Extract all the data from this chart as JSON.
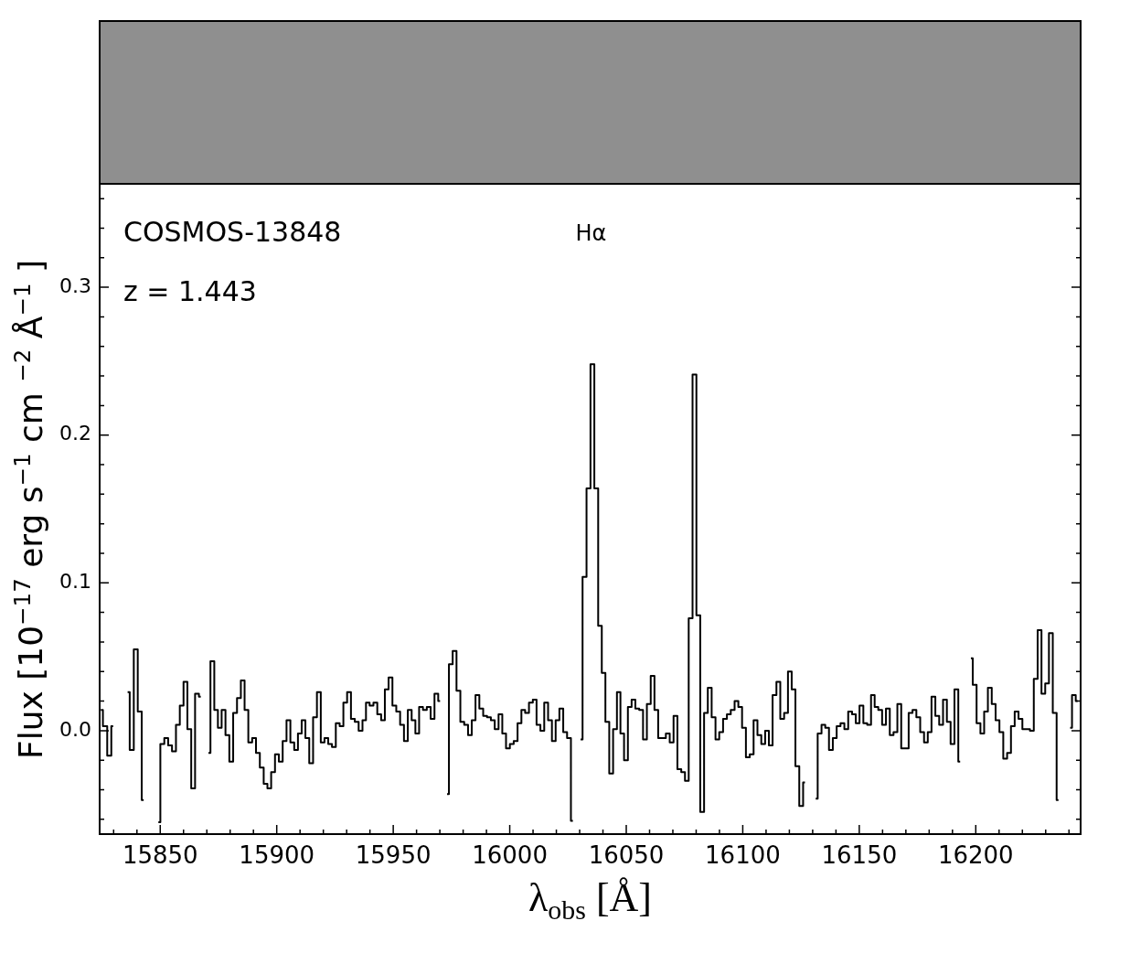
{
  "chart_data": {
    "type": "step",
    "xlabel": "λ$_{obs}$ [Å]",
    "ylabel": "Flux [10$^{−17}$ erg s$^{−1}$ cm $^{−2}$ Å$^{−1}$ ]",
    "annotations": [
      "COSMOS-13848",
      "z = 1.443",
      "Hα"
    ],
    "xlim": [
      15824,
      16245
    ],
    "ylim": [
      -0.07,
      0.37
    ],
    "xticks": [
      {
        "value": 15830,
        "label": null
      },
      {
        "value": 15840,
        "label": null
      },
      15850,
      {
        "value": 15860,
        "label": null
      },
      {
        "value": 15870,
        "label": null
      },
      {
        "value": 15880,
        "label": null
      },
      {
        "value": 15890,
        "label": null
      },
      15900,
      {
        "value": 15910,
        "label": null
      },
      {
        "value": 15920,
        "label": null
      },
      {
        "value": 15930,
        "label": null
      },
      {
        "value": 15940,
        "label": null
      },
      15950,
      {
        "value": 15960,
        "label": null
      },
      {
        "value": 15970,
        "label": null
      },
      {
        "value": 15980,
        "label": null
      },
      {
        "value": 15990,
        "label": null
      },
      16000,
      {
        "value": 16010,
        "label": null
      },
      {
        "value": 16020,
        "label": null
      },
      {
        "value": 16030,
        "label": null
      },
      {
        "value": 16040,
        "label": null
      },
      16050,
      {
        "value": 16060,
        "label": null
      },
      {
        "value": 16070,
        "label": null
      },
      {
        "value": 16080,
        "label": null
      },
      {
        "value": 16090,
        "label": null
      },
      16100,
      {
        "value": 16110,
        "label": null
      },
      {
        "value": 16120,
        "label": null
      },
      {
        "value": 16130,
        "label": null
      },
      {
        "value": 16140,
        "label": null
      },
      16150,
      {
        "value": 16160,
        "label": null
      },
      {
        "value": 16170,
        "label": null
      },
      {
        "value": 16180,
        "label": null
      },
      {
        "value": 16190,
        "label": null
      },
      16200,
      {
        "value": 16210,
        "label": null
      },
      {
        "value": 16220,
        "label": null
      },
      {
        "value": 16230,
        "label": null
      },
      {
        "value": 16240,
        "label": null
      }
    ],
    "yticks": [
      {
        "value": -0.06,
        "label": null
      },
      {
        "value": -0.04,
        "label": null
      },
      {
        "value": -0.02,
        "label": null
      },
      {
        "value": 0,
        "label": "0.0"
      },
      {
        "value": 0.02,
        "label": null
      },
      {
        "value": 0.04,
        "label": null
      },
      {
        "value": 0.06,
        "label": null
      },
      {
        "value": 0.08,
        "label": null
      },
      0.1,
      {
        "value": 0.12,
        "label": null
      },
      {
        "value": 0.14,
        "label": null
      },
      {
        "value": 0.16,
        "label": null
      },
      {
        "value": 0.18,
        "label": null
      },
      0.2,
      {
        "value": 0.22,
        "label": null
      },
      {
        "value": 0.24,
        "label": null
      },
      {
        "value": 0.26,
        "label": null
      },
      {
        "value": 0.28,
        "label": null
      },
      0.3,
      {
        "value": 0.32,
        "label": null
      },
      {
        "value": 0.34,
        "label": null
      },
      {
        "value": 0.36,
        "label": null
      }
    ],
    "color": "#000000",
    "x": [
      15824.5,
      15826.3,
      15828.2,
      15829.8,
      15831.4,
      15832.9,
      15834.5,
      15836.0,
      15837.8,
      15839.5,
      15841.2,
      15842.9,
      15844.5,
      15846.0,
      15847.5,
      15849.2,
      15850.9,
      15852.6,
      15854.2,
      15855.9,
      15857.6,
      15859.2,
      15860.8,
      15862.5,
      15864.1,
      15865.8,
      15867.4,
      15869.1,
      15870.7,
      15872.4,
      15874.0,
      15875.5,
      15877.2,
      15878.8,
      15880.5,
      15882.1,
      15883.8,
      15885.4,
      15887.0,
      15888.6,
      15890.3,
      15891.9,
      15893.6,
      15895.2,
      15896.8,
      15898.4,
      15900.1,
      15901.7,
      15903.4,
      15905.0,
      15906.7,
      15908.3,
      15909.9,
      15911.5,
      15913.1,
      15914.8,
      15916.4,
      15918.1,
      15919.7,
      15921.3,
      15922.9,
      15924.5,
      15926.2,
      15927.8,
      15929.4,
      15931.0,
      15932.7,
      15934.3,
      15936.0,
      15937.6,
      15939.0,
      15940.7,
      15942.3,
      15944.0,
      15945.6,
      15947.2,
      15948.8,
      15950.5,
      15952.1,
      15953.8,
      15955.4,
      15957.1,
      15958.7,
      15960.3,
      15961.9,
      15963.6,
      15965.2,
      15966.9,
      15968.5,
      15970.1,
      15971.6,
      15973.1,
      15974.7,
      15976.3,
      15978.0,
      15979.6,
      15981.3,
      15982.9,
      15984.5,
      15986.1,
      15987.8,
      15989.4,
      15991.1,
      15992.7,
      15994.4,
      15996.0,
      15997.6,
      15999.2,
      16000.9,
      16002.5,
      16004.2,
      16005.8,
      16007.4,
      16009.1,
      16010.7,
      16012.3,
      16014.0,
      16015.6,
      16017.3,
      16018.9,
      16020.5,
      16022.1,
      16023.8,
      16025.4,
      16027.1,
      16028.7,
      16030.4,
      16032.1,
      16033.8,
      16035.5,
      16037.1,
      16038.8,
      16040.2,
      16041.9,
      16043.5,
      16045.2,
      16046.8,
      16048.2,
      16049.9,
      16051.5,
      16053.1,
      16054.7,
      16056.4,
      16058.0,
      16059.7,
      16061.3,
      16062.9,
      16064.5,
      16066.2,
      16067.8,
      16069.5,
      16071.1,
      16072.8,
      16074.4,
      16076.0,
      16077.6,
      16079.3,
      16080.9,
      16082.6,
      16084.2,
      16085.8,
      16087.5,
      16089.1,
      16090.7,
      16092.4,
      16094.0,
      16095.7,
      16097.3,
      16098.9,
      16100.5,
      16102.2,
      16103.8,
      16105.5,
      16107.1,
      16108.8,
      16110.4,
      16112.0,
      16113.6,
      16115.3,
      16116.9,
      16118.6,
      16120.2,
      16121.8,
      16123.4,
      16125.1,
      16126.7,
      16128.3,
      16129.7,
      16131.3,
      16133.0,
      16134.6,
      16136.2,
      16137.8,
      16139.5,
      16141.1,
      16142.8,
      16144.4,
      16146.1,
      16147.7,
      16149.3,
      16150.9,
      16152.6,
      16154.2,
      16155.9,
      16157.3,
      16159.0,
      16160.6,
      16162.3,
      16163.9,
      16165.5,
      16167.2,
      16168.8,
      16170.4,
      16172.0,
      16173.7,
      16175.3,
      16177.0,
      16178.6,
      16180.2,
      16181.8,
      16183.5,
      16185.1,
      16186.8,
      16188.4,
      16190.0,
      16191.7,
      16193.3,
      16194.9,
      16196.3,
      16197.9,
      16199.5,
      16201.2,
      16202.8,
      16204.4,
      16206.0,
      16207.7,
      16209.3,
      16211.0,
      16212.6,
      16214.3,
      16215.9,
      16217.5,
      16219.2,
      16220.8,
      16222.4,
      16224.1,
      16225.7,
      16227.4,
      16229.0,
      16230.6,
      16232.2,
      16233.9,
      16235.5,
      16237.2,
      16238.8,
      16240.5,
      16242.1,
      16243.7
    ],
    "values": [
      0.014,
      0.003,
      -0.017,
      0.003,
      null,
      null,
      null,
      0.026,
      -0.013,
      0.055,
      0.013,
      -0.047,
      null,
      null,
      null,
      -0.062,
      -0.009,
      -0.005,
      -0.01,
      -0.014,
      0.004,
      0.017,
      0.033,
      0.001,
      -0.039,
      0.025,
      0.023,
      null,
      -0.015,
      0.047,
      0.014,
      0.002,
      0.014,
      -0.003,
      -0.021,
      0.012,
      0.022,
      0.034,
      0.014,
      -0.008,
      -0.005,
      -0.015,
      -0.025,
      -0.036,
      -0.039,
      -0.028,
      -0.016,
      -0.021,
      -0.007,
      0.007,
      -0.008,
      -0.013,
      -0.002,
      0.007,
      -0.005,
      -0.022,
      0.009,
      0.026,
      -0.008,
      -0.005,
      -0.009,
      -0.011,
      0.005,
      0.003,
      0.019,
      0.026,
      0.008,
      0.006,
      0.0,
      0.007,
      0.019,
      0.017,
      0.019,
      0.011,
      0.007,
      0.028,
      0.036,
      0.017,
      0.013,
      0.004,
      -0.007,
      0.014,
      0.007,
      -0.002,
      0.016,
      0.014,
      0.016,
      0.008,
      0.025,
      0.02,
      null,
      -0.043,
      0.045,
      0.054,
      0.027,
      0.006,
      0.004,
      -0.003,
      0.007,
      0.024,
      0.015,
      0.01,
      0.009,
      0.007,
      0.001,
      0.011,
      -0.002,
      -0.012,
      -0.009,
      -0.007,
      0.005,
      0.014,
      0.012,
      0.019,
      0.021,
      0.004,
      0.0,
      0.019,
      0.007,
      -0.007,
      0.007,
      0.015,
      -0.001,
      -0.005,
      -0.061,
      null,
      -0.006,
      0.104,
      0.164,
      0.248,
      0.164,
      0.071,
      0.039,
      0.006,
      -0.029,
      0.001,
      0.026,
      -0.002,
      -0.02,
      0.016,
      0.021,
      0.015,
      0.014,
      -0.006,
      0.018,
      0.037,
      0.014,
      -0.005,
      -0.005,
      -0.002,
      -0.008,
      0.01,
      -0.026,
      -0.028,
      -0.034,
      0.076,
      0.241,
      0.078,
      -0.055,
      0.012,
      0.029,
      0.009,
      -0.006,
      -0.001,
      0.008,
      0.011,
      0.014,
      0.02,
      0.016,
      0.002,
      -0.018,
      -0.016,
      0.007,
      -0.003,
      -0.009,
      0.0,
      -0.01,
      0.024,
      0.033,
      0.008,
      0.012,
      0.04,
      0.028,
      -0.024,
      -0.051,
      -0.035,
      null,
      null,
      -0.046,
      -0.002,
      0.004,
      0.002,
      -0.013,
      -0.005,
      0.003,
      0.005,
      0.001,
      0.013,
      0.011,
      0.005,
      0.017,
      0.005,
      0.004,
      0.024,
      0.016,
      0.014,
      0.004,
      0.015,
      -0.003,
      -0.001,
      0.018,
      -0.012,
      -0.012,
      0.012,
      0.014,
      0.009,
      -0.001,
      -0.008,
      -0.001,
      0.023,
      0.01,
      0.004,
      0.021,
      0.006,
      -0.009,
      0.028,
      -0.021,
      null,
      null,
      0.049,
      0.031,
      0.005,
      -0.002,
      0.013,
      0.029,
      0.018,
      0.007,
      -0.001,
      -0.019,
      -0.015,
      0.003,
      0.013,
      0.008,
      0.001,
      0.001,
      0.0,
      0.035,
      0.068,
      0.025,
      0.032,
      0.066,
      0.012,
      -0.047,
      null,
      null,
      0.002,
      0.024,
      0.02
    ]
  }
}
